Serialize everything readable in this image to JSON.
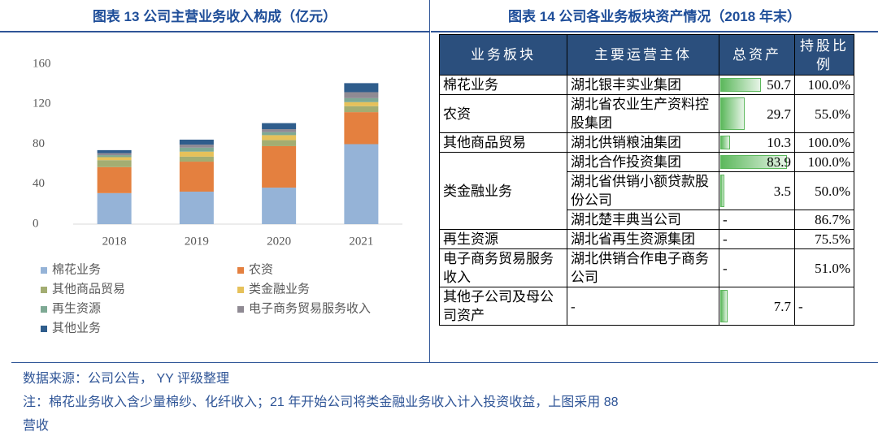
{
  "chart_data": {
    "type": "bar",
    "stacked": true,
    "title": "图表 13 公司主营业务收入构成（亿元）",
    "categories": [
      "2018",
      "2019",
      "2020",
      "2021"
    ],
    "series": [
      {
        "name": "棉花业务",
        "color": "#95b3d7",
        "values": [
          31,
          32.5,
          36.5,
          80
        ]
      },
      {
        "name": "农资",
        "color": "#e4803f",
        "values": [
          26,
          30,
          41.5,
          32
        ]
      },
      {
        "name": "其他商品贸易",
        "color": "#a3ad72",
        "values": [
          7,
          5,
          6,
          6
        ]
      },
      {
        "name": "类金融业务",
        "color": "#e6c15a",
        "values": [
          3,
          5,
          5,
          4
        ]
      },
      {
        "name": "再生资源",
        "color": "#7ea994",
        "values": [
          2,
          4,
          3,
          4
        ]
      },
      {
        "name": "电子商务贸易服务收入",
        "color": "#8f8a93",
        "values": [
          2,
          3,
          3,
          6
        ]
      },
      {
        "name": "其他业务",
        "color": "#2f5d8c",
        "values": [
          3,
          5,
          6,
          9
        ]
      }
    ],
    "ylim": [
      0,
      160
    ],
    "yticks": [
      0,
      40,
      80,
      120,
      160
    ]
  },
  "table_title": "图表 14 公司各业务板块资产情况（2018 年末）",
  "table": {
    "header": [
      "业务板块",
      "主要运营主体",
      "总资产",
      "持股比例"
    ],
    "groups": [
      {
        "segment": "棉花业务",
        "rows": [
          {
            "entity": "湖北银丰实业集团",
            "assets": 50.7,
            "share": "100.0%"
          }
        ]
      },
      {
        "segment": "农资",
        "rows": [
          {
            "entity": "湖北省农业生产资料控股集团",
            "assets": 29.7,
            "share": "55.0%"
          }
        ]
      },
      {
        "segment": "其他商品贸易",
        "rows": [
          {
            "entity": "湖北供销粮油集团",
            "assets": 10.3,
            "share": "100.0%"
          }
        ]
      },
      {
        "segment": "类金融业务",
        "rows": [
          {
            "entity": "湖北合作投资集团",
            "assets": 83.9,
            "share": "100.0%"
          },
          {
            "entity": "湖北省供销小额贷款股份公司",
            "assets": 3.5,
            "share": "50.0%"
          },
          {
            "entity": "湖北楚丰典当公司",
            "assets": "-",
            "share": "86.7%"
          }
        ]
      },
      {
        "segment": "再生资源",
        "rows": [
          {
            "entity": "湖北省再生资源集团",
            "assets": "-",
            "share": "75.5%"
          }
        ]
      },
      {
        "segment": "电子商务贸易服务收入",
        "rows": [
          {
            "entity": "湖北供销合作电子商务公司",
            "assets": "-",
            "share": "51.0%"
          }
        ]
      },
      {
        "segment": "其他子公司及母公司资产",
        "rows": [
          {
            "entity": "-",
            "assets": 7.7,
            "share": "-"
          }
        ]
      }
    ]
  },
  "notes": [
    "数据来源：公司公告， YY 评级整理",
    "注：棉花业务收入含少量棉纱、化纤收入；21 年开始公司将类金融业务收入计入投资收益，上图采用 88",
    "营收"
  ]
}
